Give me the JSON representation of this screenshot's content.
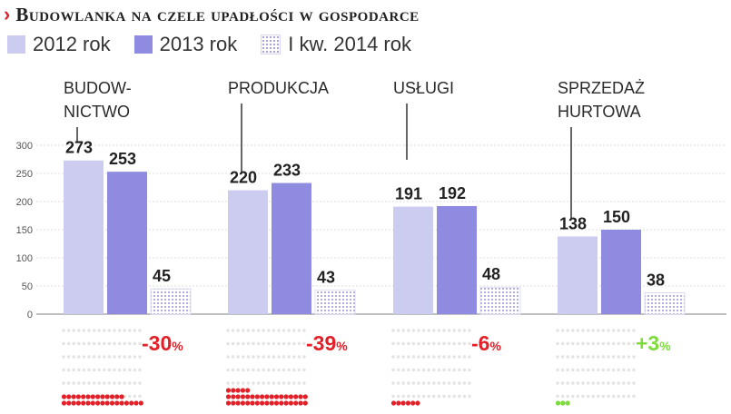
{
  "title": "Budowlanka na czele upadłości w gospodarce",
  "legend": [
    {
      "label": "2012 rok"
    },
    {
      "label": "2013 rok"
    },
    {
      "label": "I kw. 2014 rok"
    }
  ],
  "colors": {
    "accent": "#d9232d",
    "series_2012": "#cccbf0",
    "series_2013": "#8f8be0",
    "series_q1": "#a7a4e6",
    "negative": "#e32028",
    "positive": "#7ddc3c",
    "dot_empty": "#e3e3e3"
  },
  "chart_data": {
    "type": "bar",
    "title": "Budowlanka na czele upadłości w gospodarce",
    "categories": [
      "BUDOW-\nNICTWO",
      "PRODUKCJA",
      "USŁUGI",
      "SPRZEDAŻ\nHURTOWA"
    ],
    "series": [
      {
        "name": "2012 rok",
        "values": [
          273,
          220,
          191,
          138
        ]
      },
      {
        "name": "2013 rok",
        "values": [
          253,
          233,
          192,
          150
        ]
      },
      {
        "name": "I kw. 2014 rok",
        "values": [
          45,
          43,
          48,
          38
        ]
      }
    ],
    "change_labels": [
      "-30%",
      "-39%",
      "-6%",
      "+3%"
    ],
    "change_filled_dots": [
      30,
      39,
      6,
      3
    ],
    "ylim": [
      0,
      300
    ],
    "yticks": [
      0,
      50,
      100,
      150,
      200,
      250,
      300
    ],
    "grid": true,
    "legend_position": "top-left"
  }
}
